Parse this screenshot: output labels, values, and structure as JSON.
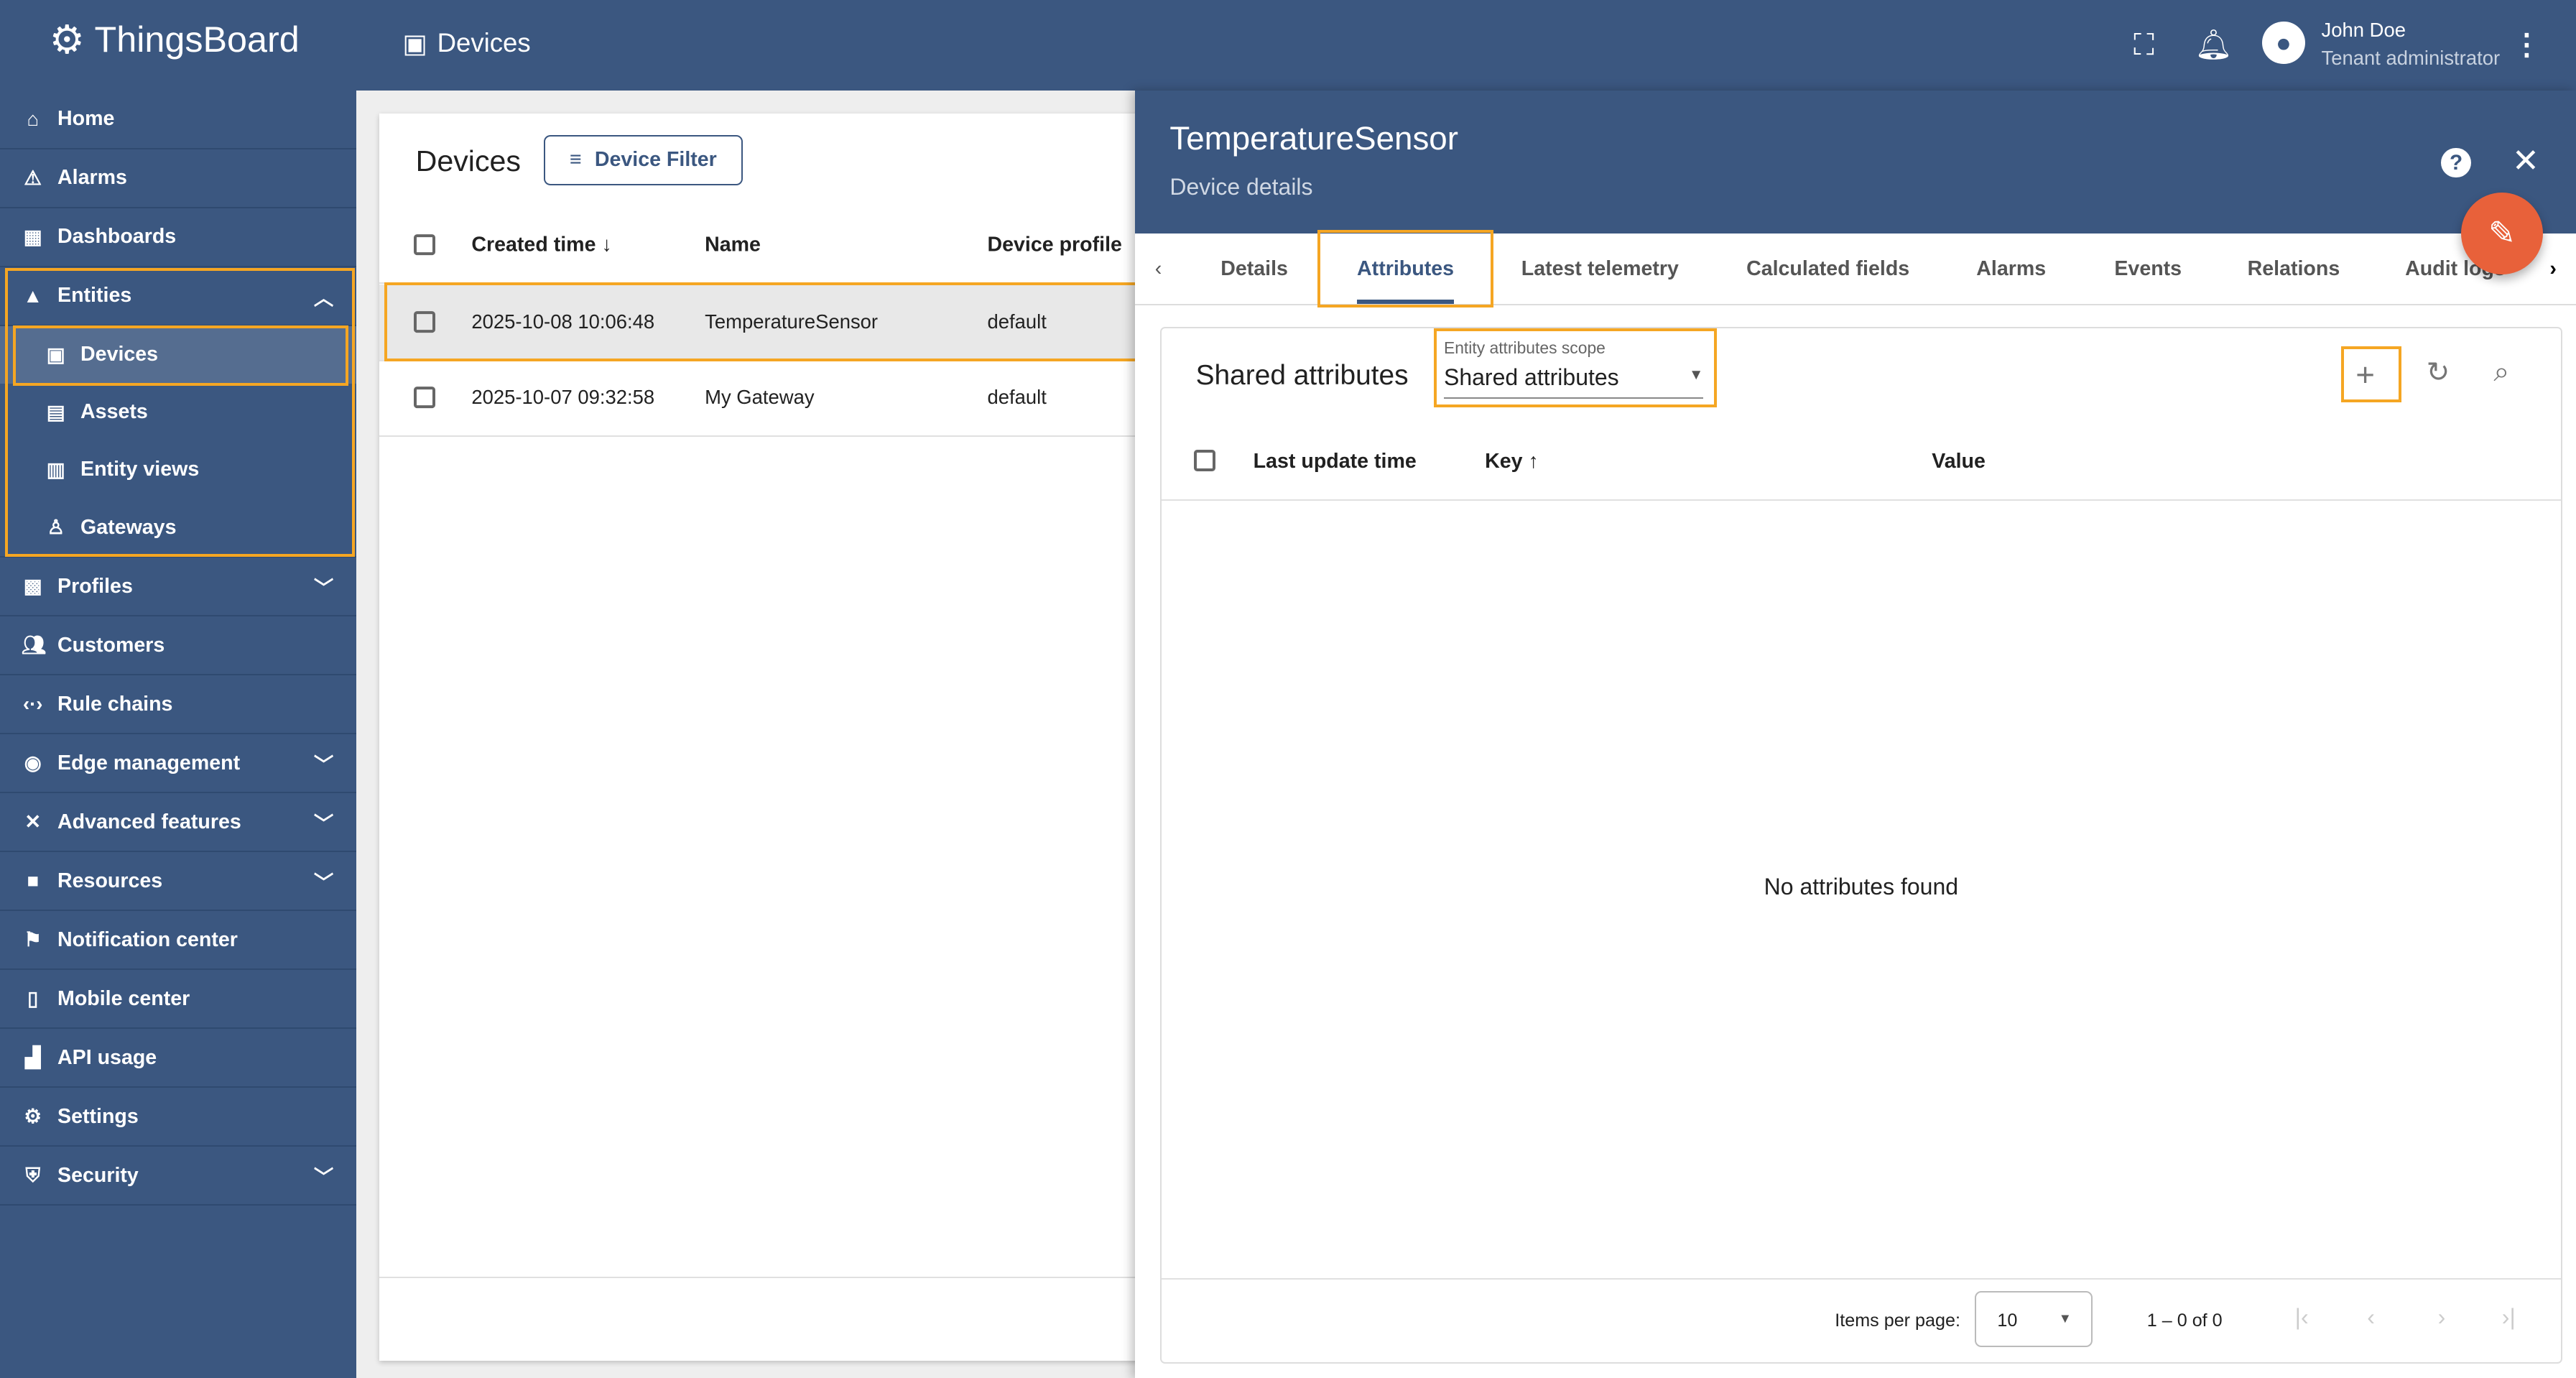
{
  "header": {
    "logo_text": "ThingsBoard",
    "breadcrumb": "Devices",
    "user_name": "John Doe",
    "user_role": "Tenant administrator"
  },
  "sidebar": {
    "items": [
      {
        "label": "Home",
        "icon": "home-icon"
      },
      {
        "label": "Alarms",
        "icon": "warning-icon"
      },
      {
        "label": "Dashboards",
        "icon": "dashboard-icon"
      },
      {
        "label": "Entities",
        "icon": "entities-icon",
        "expanded": true,
        "children": [
          {
            "label": "Devices",
            "icon": "devices-icon",
            "active": true
          },
          {
            "label": "Assets",
            "icon": "domain-icon"
          },
          {
            "label": "Entity views",
            "icon": "view-quilt-icon"
          },
          {
            "label": "Gateways",
            "icon": "gateway-icon"
          }
        ]
      },
      {
        "label": "Profiles",
        "icon": "badge-icon"
      },
      {
        "label": "Customers",
        "icon": "people-icon"
      },
      {
        "label": "Rule chains",
        "icon": "settings-ethernet-icon"
      },
      {
        "label": "Edge management",
        "icon": "router-icon"
      },
      {
        "label": "Advanced features",
        "icon": "construction-icon"
      },
      {
        "label": "Resources",
        "icon": "folder-icon"
      },
      {
        "label": "Notification center",
        "icon": "notification-icon"
      },
      {
        "label": "Mobile center",
        "icon": "phone-icon"
      },
      {
        "label": "API usage",
        "icon": "insert-chart-icon"
      },
      {
        "label": "Settings",
        "icon": "gear-icon"
      },
      {
        "label": "Security",
        "icon": "security-icon"
      }
    ]
  },
  "devices": {
    "title": "Devices",
    "filter_label": "Device Filter",
    "columns": [
      "Created time",
      "Name",
      "Device profile"
    ],
    "rows": [
      [
        "2025-10-08 10:06:48",
        "TemperatureSensor",
        "default"
      ],
      [
        "2025-10-07 09:32:58",
        "My Gateway",
        "default"
      ]
    ]
  },
  "details": {
    "title": "TemperatureSensor",
    "subtitle": "Device details",
    "tabs": [
      "Details",
      "Attributes",
      "Latest telemetry",
      "Calculated fields",
      "Alarms",
      "Events",
      "Relations",
      "Audit logs"
    ],
    "active_tab": "Attributes",
    "section_title": "Shared attributes",
    "scope_label": "Entity attributes scope",
    "scope_value": "Shared attributes",
    "columns": [
      "Last update time",
      "Key",
      "Value"
    ],
    "empty_text": "No attributes found",
    "items_per_page_label": "Items per page:",
    "items_per_page": "10",
    "range_text": "1 – 0 of 0"
  },
  "colors": {
    "primary": "#3b5780",
    "accent": "#e8613a",
    "highlight": "#f5a623"
  }
}
